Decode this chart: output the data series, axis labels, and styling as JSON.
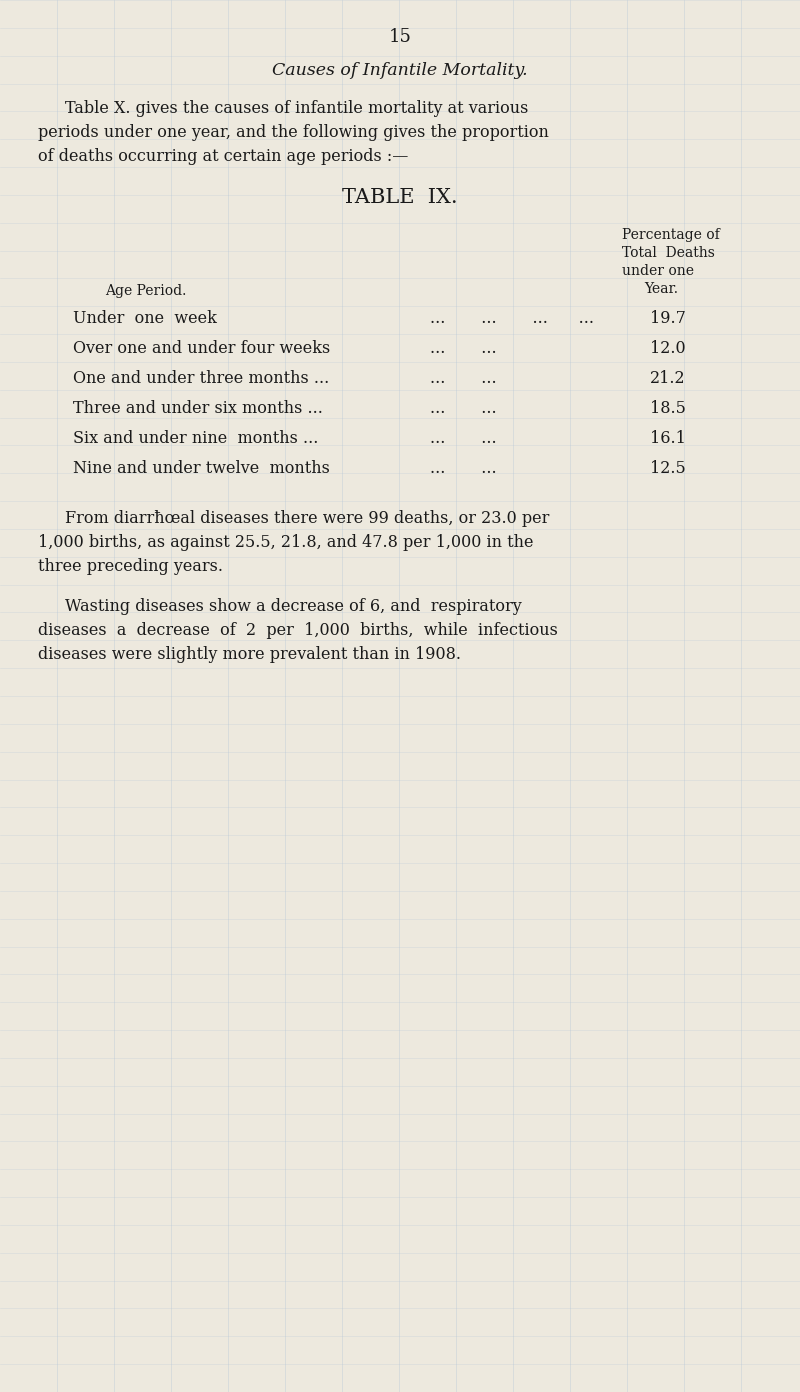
{
  "page_number": "15",
  "title_italic": "Causes of Infantile Mortality.",
  "intro_line1": "Table X. gives the causes of infantile mortality at various",
  "intro_line2": "periods under one year, and the following gives the proportion",
  "intro_line3": "of deaths occurring at certain age periods :—",
  "table_title": "TABLE  IX.",
  "col_header_line1": "Percentage of",
  "col_header_line2": "Total  Deaths",
  "col_header_line3": "under one",
  "col_header_year": "Year.",
  "col_header_age": "Age Period.",
  "table_rows": [
    {
      "label": "Under  one  week",
      "dots": "...       ...       ...      ...",
      "value": "19.7"
    },
    {
      "label": "Over one and under four weeks",
      "dots": "...       ...",
      "value": "12.0"
    },
    {
      "label": "One and under three months ...",
      "dots": "...       ...",
      "value": "21.2"
    },
    {
      "label": "Three and under six months ...",
      "dots": "...       ...",
      "value": "18.5"
    },
    {
      "label": "Six and under nine  months ...",
      "dots": "...       ...",
      "value": "16.1"
    },
    {
      "label": "Nine and under twelve  months",
      "dots": "...       ...",
      "value": "12.5"
    }
  ],
  "para1_line1": "From diarrħœal diseases there were 99 deaths, or 23.0 per",
  "para1_line2": "1,000 births, as against 25.5, 21.8, and 47.8 per 1,000 in the",
  "para1_line3": "three preceding years.",
  "para2_line1": "Wasting diseases show a decrease of 6, and  respiratory",
  "para2_line2": "diseases  a  decrease  of  2  per  1,000  births,  while  infectious",
  "para2_line3": "diseases were slightly more prevalent than in 1908.",
  "bg_color": "#ede9de",
  "text_color": "#1a1a1a",
  "grid_color": "#b8c8d8",
  "fig_width": 8.0,
  "fig_height": 13.92,
  "dpi": 100
}
